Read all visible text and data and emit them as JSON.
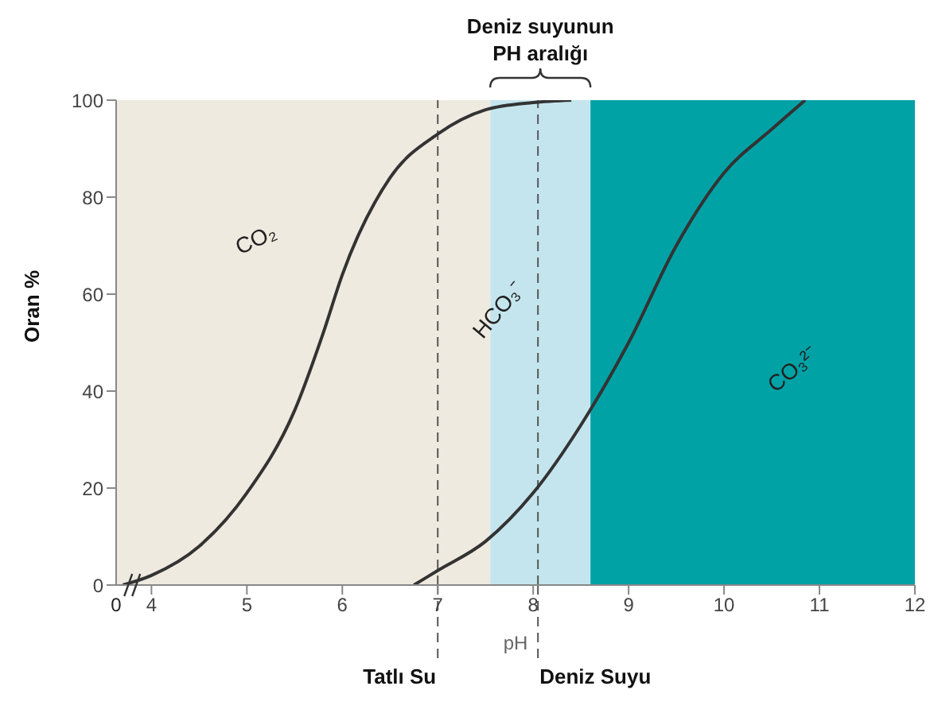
{
  "chart_data": {
    "type": "line",
    "xlabel": "pH",
    "ylabel": "Oran %",
    "xlim": [
      3.63,
      12
    ],
    "xticks": [
      4,
      5,
      6,
      7,
      8,
      9,
      10,
      11,
      12
    ],
    "ylim": [
      0,
      100
    ],
    "yticks": [
      0,
      20,
      40,
      60,
      80,
      100
    ],
    "marker": "none",
    "line_style": "solid",
    "series": [
      {
        "color": "#333333",
        "x": [
          3.7,
          4,
          4.5,
          5,
          5.5,
          5.8,
          6,
          6.5,
          7,
          7.5,
          8,
          8.4
        ],
        "values": [
          0,
          2,
          8,
          19,
          36,
          52,
          64,
          84,
          93,
          98,
          99.5,
          100
        ]
      },
      {
        "color": "#333333",
        "x": [
          6.75,
          7,
          7.5,
          8,
          8.5,
          9,
          9.5,
          10,
          10.5,
          10.85
        ],
        "values": [
          0,
          3,
          9,
          19,
          33,
          50,
          70,
          85,
          94,
          100
        ]
      }
    ],
    "bands": [
      {
        "axis": "x",
        "from": 3.63,
        "to": 7.55,
        "color": "#efeae0"
      },
      {
        "axis": "x",
        "from": 7.55,
        "to": 8.6,
        "color": "#c5e5ee",
        "label": "Deniz suyunun\nPH aralığı"
      },
      {
        "axis": "x",
        "from": 8.6,
        "to": 12,
        "color": "#00a2a6"
      }
    ],
    "ref_lines": [
      {
        "axis": "x",
        "value": 7,
        "label": "Tatlı Su",
        "line_style": "dashed",
        "color": "#555555"
      },
      {
        "axis": "x",
        "value": 8.05,
        "label": "Deniz Suyu",
        "line_style": "dashed",
        "color": "#555555"
      }
    ],
    "annotations": [
      "CO₂",
      "HCO₃⁻",
      "CO₃²⁻",
      "0"
    ]
  }
}
